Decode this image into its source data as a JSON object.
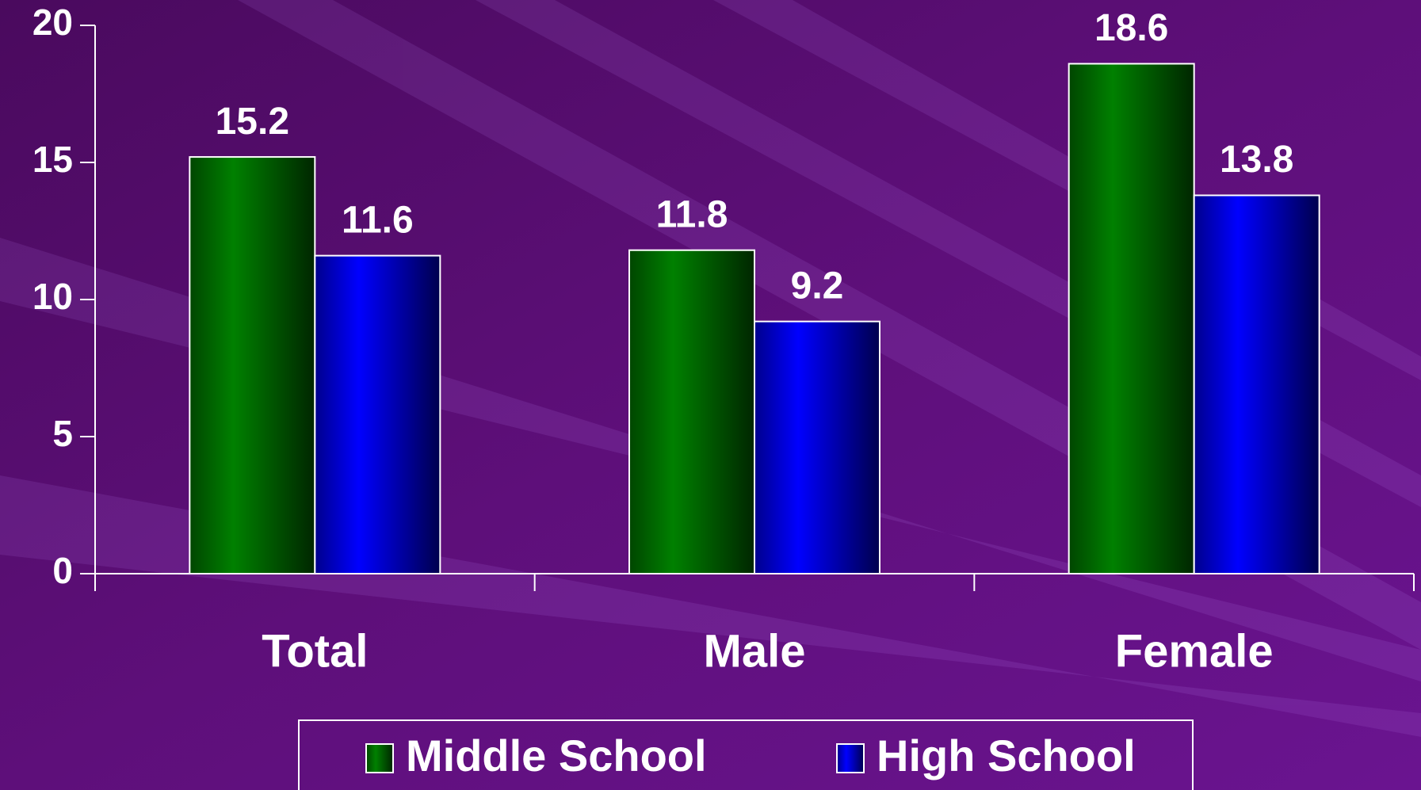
{
  "chart_data": {
    "type": "bar",
    "categories": [
      "Total",
      "Male",
      "Female"
    ],
    "series": [
      {
        "name": "Middle School",
        "color": "#008000",
        "values": [
          15.2,
          11.8,
          18.6
        ]
      },
      {
        "name": "High School",
        "color": "#0000ff",
        "values": [
          11.6,
          9.2,
          13.8
        ]
      }
    ],
    "ylim": [
      0,
      20
    ],
    "yticks": [
      0,
      5,
      10,
      15,
      20
    ],
    "legend": "bottom"
  }
}
